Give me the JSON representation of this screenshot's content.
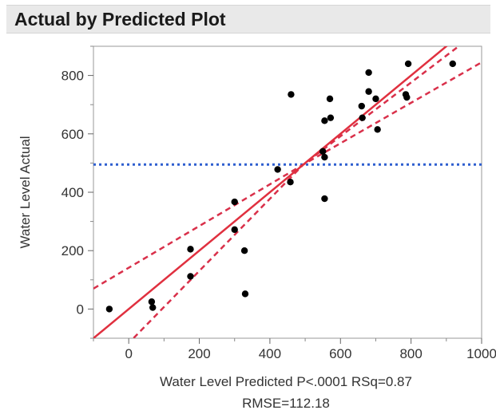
{
  "window": {
    "title": "Actual by Predicted Plot"
  },
  "chart_data": {
    "type": "scatter",
    "title": "Actual by Predicted Plot",
    "xlabel": "Water Level Predicted P<.0001 RSq=0.87",
    "xlabel_line2": "RMSE=112.18",
    "ylabel": "Water Level Actual",
    "xlim": [
      -100,
      1000
    ],
    "ylim": [
      -100,
      900
    ],
    "x_ticks": [
      0,
      200,
      400,
      600,
      800,
      1000
    ],
    "x_tick_labels": [
      "0",
      "200",
      "400",
      "600",
      "800",
      "1000"
    ],
    "y_ticks": [
      0,
      200,
      400,
      600,
      800
    ],
    "y_tick_labels": [
      "0",
      "200",
      "400",
      "600",
      "800"
    ],
    "grid": false,
    "mean_line": {
      "y": 495,
      "color": "#2f5fd0",
      "style": "dotted"
    },
    "fit_line": {
      "slope": 1.0,
      "intercept": 0,
      "color": "#e0303f"
    },
    "confidence_band": {
      "color": "#d9304a",
      "style": "dashed",
      "upper": [
        [
          -100,
          70
        ],
        [
          495,
          495
        ],
        [
          1000,
          960
        ]
      ],
      "lower": [
        [
          -100,
          -240
        ],
        [
          495,
          495
        ],
        [
          1000,
          845
        ]
      ]
    },
    "points": [
      {
        "x": -55,
        "y": 0
      },
      {
        "x": 65,
        "y": 25
      },
      {
        "x": 68,
        "y": 5
      },
      {
        "x": 175,
        "y": 205
      },
      {
        "x": 175,
        "y": 112
      },
      {
        "x": 300,
        "y": 367
      },
      {
        "x": 300,
        "y": 272
      },
      {
        "x": 328,
        "y": 200
      },
      {
        "x": 330,
        "y": 52
      },
      {
        "x": 422,
        "y": 478
      },
      {
        "x": 458,
        "y": 435
      },
      {
        "x": 460,
        "y": 735
      },
      {
        "x": 550,
        "y": 540
      },
      {
        "x": 555,
        "y": 645
      },
      {
        "x": 555,
        "y": 378
      },
      {
        "x": 555,
        "y": 520
      },
      {
        "x": 570,
        "y": 720
      },
      {
        "x": 572,
        "y": 655
      },
      {
        "x": 660,
        "y": 695
      },
      {
        "x": 662,
        "y": 655
      },
      {
        "x": 680,
        "y": 810
      },
      {
        "x": 680,
        "y": 745
      },
      {
        "x": 700,
        "y": 720
      },
      {
        "x": 705,
        "y": 615
      },
      {
        "x": 785,
        "y": 735
      },
      {
        "x": 788,
        "y": 725
      },
      {
        "x": 792,
        "y": 840
      },
      {
        "x": 918,
        "y": 840
      }
    ],
    "point_color": "#000000"
  }
}
